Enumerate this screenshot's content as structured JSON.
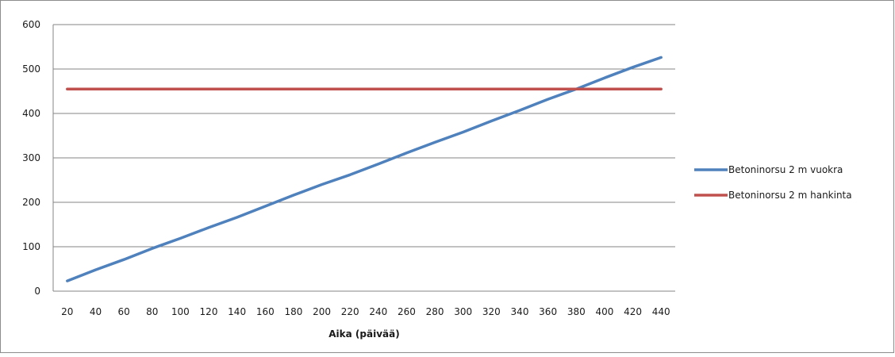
{
  "chart_data": {
    "type": "line",
    "title": "",
    "xlabel": "Aika (päivää)",
    "ylabel": "",
    "x": [
      20,
      40,
      60,
      80,
      100,
      120,
      140,
      160,
      180,
      200,
      220,
      240,
      260,
      280,
      300,
      320,
      340,
      360,
      380,
      400,
      420,
      440
    ],
    "ylim": [
      0,
      600
    ],
    "y_ticks": [
      "0",
      "100",
      "200",
      "300",
      "400",
      "500",
      "600"
    ],
    "grid": "horizontal",
    "legend_position": "right",
    "series": [
      {
        "name": "Betoninorsu 2 m vuokra",
        "color": "#4f81bd",
        "values": [
          23,
          48,
          71,
          96,
          119,
          143,
          166,
          191,
          216,
          240,
          262,
          286,
          311,
          335,
          358,
          383,
          407,
          432,
          455,
          480,
          504,
          526
        ]
      },
      {
        "name": "Betoninorsu 2 m hankinta",
        "color": "#c0504d",
        "values": [
          455,
          455,
          455,
          455,
          455,
          455,
          455,
          455,
          455,
          455,
          455,
          455,
          455,
          455,
          455,
          455,
          455,
          455,
          455,
          455,
          455,
          455
        ]
      }
    ]
  }
}
